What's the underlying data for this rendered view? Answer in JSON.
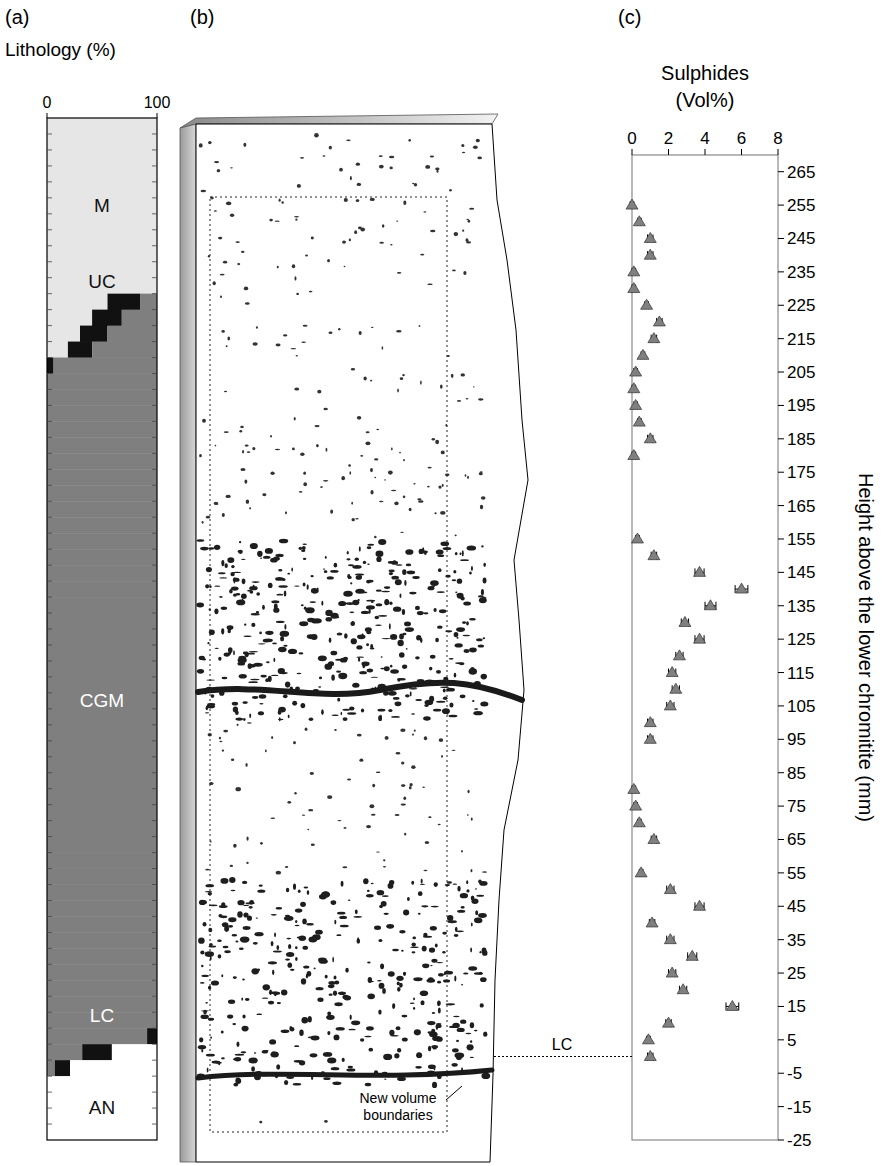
{
  "chart_data": [
    {
      "type": "bar",
      "panel": "(a)",
      "title": "Lithology (%)",
      "orientation": "horizontal",
      "stacked": true,
      "tick_labels": "x",
      "xlim": [
        0,
        100
      ],
      "xticks": [
        0,
        100
      ],
      "categories": [
        null,
        null,
        null,
        null,
        null,
        null,
        null,
        null,
        null,
        null,
        null,
        null,
        null,
        null,
        null,
        null,
        null,
        null,
        null,
        null,
        null,
        null,
        null,
        null,
        null,
        null,
        null,
        null,
        null,
        null,
        null,
        null,
        null,
        null,
        null,
        null,
        null,
        null,
        null,
        null,
        null,
        null,
        null,
        null,
        null,
        null,
        null,
        null,
        null,
        null,
        null,
        null,
        null,
        null,
        null,
        null,
        null,
        null,
        null,
        null,
        null,
        null,
        null,
        null
      ],
      "series": [
        {
          "name": "M",
          "color": "#e6e6e6",
          "values": [
            100,
            100,
            100,
            100,
            100,
            100,
            100,
            100,
            100,
            100,
            100,
            55,
            41,
            30,
            19,
            0,
            0,
            0,
            0,
            0,
            0,
            0,
            0,
            0,
            0,
            0,
            0,
            0,
            0,
            0,
            0,
            0,
            0,
            0,
            0,
            0,
            0,
            0,
            0,
            0,
            0,
            0,
            0,
            0,
            0,
            0,
            0,
            0,
            0,
            0,
            0,
            0,
            0,
            0,
            0,
            0,
            0,
            0,
            0,
            0,
            0,
            0,
            0,
            0
          ]
        },
        {
          "name": "UC",
          "color": "#111111",
          "values": [
            0,
            0,
            0,
            0,
            0,
            0,
            0,
            0,
            0,
            0,
            0,
            30,
            27,
            25,
            22,
            6,
            0,
            0,
            0,
            0,
            0,
            0,
            0,
            0,
            0,
            0,
            0,
            0,
            0,
            0,
            0,
            0,
            0,
            0,
            0,
            0,
            0,
            0,
            0,
            0,
            0,
            0,
            0,
            0,
            0,
            0,
            0,
            0,
            0,
            0,
            0,
            0,
            0,
            0,
            0,
            0,
            0,
            0,
            0,
            0,
            0,
            0,
            0,
            0
          ]
        },
        {
          "name": "CGM",
          "color": "#7f7f7f",
          "values": [
            0,
            0,
            0,
            0,
            0,
            0,
            0,
            0,
            0,
            0,
            0,
            15,
            32,
            45,
            59,
            94,
            100,
            100,
            100,
            100,
            100,
            100,
            100,
            100,
            100,
            100,
            100,
            100,
            100,
            100,
            100,
            100,
            100,
            100,
            100,
            100,
            100,
            100,
            100,
            100,
            100,
            100,
            100,
            100,
            100,
            100,
            100,
            100,
            100,
            100,
            100,
            100,
            100,
            100,
            100,
            100,
            100,
            91,
            32,
            7,
            0,
            0,
            0,
            0
          ]
        },
        {
          "name": "LC",
          "color": "#111111",
          "values": [
            0,
            0,
            0,
            0,
            0,
            0,
            0,
            0,
            0,
            0,
            0,
            0,
            0,
            0,
            0,
            0,
            0,
            0,
            0,
            0,
            0,
            0,
            0,
            0,
            0,
            0,
            0,
            0,
            0,
            0,
            0,
            0,
            0,
            0,
            0,
            0,
            0,
            0,
            0,
            0,
            0,
            0,
            0,
            0,
            0,
            0,
            0,
            0,
            0,
            0,
            0,
            0,
            0,
            0,
            0,
            0,
            0,
            9,
            27,
            14,
            0,
            0,
            0,
            0
          ]
        },
        {
          "name": "AN",
          "color": "#ffffff",
          "values": [
            0,
            0,
            0,
            0,
            0,
            0,
            0,
            0,
            0,
            0,
            0,
            0,
            0,
            0,
            0,
            0,
            0,
            0,
            0,
            0,
            0,
            0,
            0,
            0,
            0,
            0,
            0,
            0,
            0,
            0,
            0,
            0,
            0,
            0,
            0,
            0,
            0,
            0,
            0,
            0,
            0,
            0,
            0,
            0,
            0,
            0,
            0,
            0,
            0,
            0,
            0,
            0,
            0,
            0,
            0,
            0,
            0,
            0,
            41,
            79,
            100,
            100,
            100,
            100
          ]
        }
      ]
    },
    {
      "type": "image",
      "panel": "(b)",
      "annotations": [
        {
          "text": "New volume boundaries"
        }
      ]
    },
    {
      "type": "scatter",
      "panel": "(c)",
      "x_label": "Sulphides (Vol%)",
      "y_label": "Height above the lower chromitite (mm)",
      "marker": "triangle",
      "color": "#808080",
      "xlim": [
        0,
        8
      ],
      "xticks": [
        0,
        2,
        4,
        6,
        8
      ],
      "ylim": [
        -25,
        270
      ],
      "yticks": [
        -25,
        -15,
        -5,
        5,
        15,
        25,
        35,
        45,
        55,
        65,
        75,
        85,
        95,
        105,
        115,
        125,
        135,
        145,
        155,
        165,
        175,
        185,
        195,
        205,
        215,
        225,
        235,
        245,
        255,
        265
      ],
      "x": [
        0,
        0.4,
        1.0,
        1.0,
        0.1,
        0.1,
        0.8,
        1.5,
        1.2,
        0.6,
        0.2,
        0.1,
        0.2,
        0.4,
        1.0,
        0.1,
        0.3,
        1.2,
        3.7,
        6.0,
        4.3,
        2.9,
        3.7,
        2.6,
        2.2,
        2.4,
        2.1,
        1.0,
        1.0,
        0.1,
        0.2,
        0.4,
        1.2,
        0.5,
        2.1,
        3.7,
        1.1,
        2.1,
        3.3,
        2.2,
        2.8,
        5.5,
        2.0,
        0.9,
        1.0
      ],
      "y": [
        255,
        250,
        245,
        240,
        235,
        230,
        225,
        220,
        215,
        210,
        205,
        200,
        195,
        190,
        185,
        180,
        155,
        150,
        145,
        140,
        135,
        130,
        125,
        120,
        115,
        110,
        105,
        100,
        95,
        80,
        75,
        70,
        65,
        55,
        50,
        45,
        40,
        35,
        30,
        25,
        20,
        15,
        10,
        5,
        0
      ],
      "x_errors": [
        0.1,
        0.1,
        0.15,
        0.15,
        0.1,
        0.1,
        0.1,
        0.15,
        0.15,
        0.1,
        0.1,
        0.1,
        0.1,
        0.1,
        0.15,
        0.1,
        0.1,
        0.15,
        0.25,
        0.35,
        0.3,
        0.2,
        0.25,
        0.2,
        0.2,
        0.2,
        0.2,
        0.15,
        0.15,
        0.1,
        0.1,
        0.1,
        0.15,
        0.1,
        0.2,
        0.25,
        0.15,
        0.2,
        0.25,
        0.2,
        0.2,
        0.35,
        0.15,
        0.1,
        0.15
      ],
      "annotations": [
        {
          "text": "LC",
          "y": 0
        }
      ]
    }
  ]
}
